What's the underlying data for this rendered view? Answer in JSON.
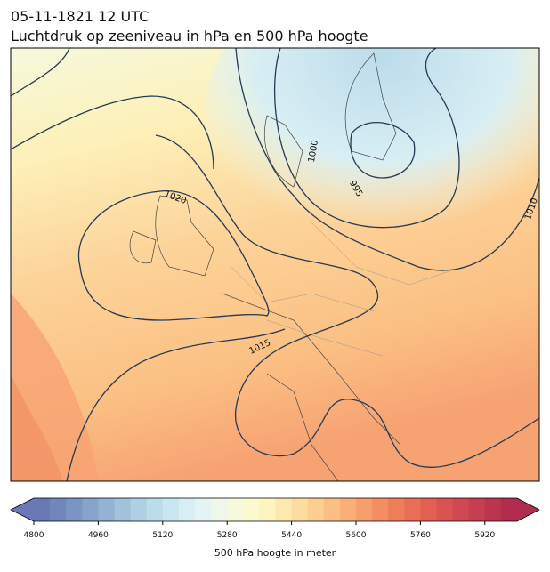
{
  "title": "05-11-1821 12 UTC",
  "subtitle": "Luchtdruk op zeeniveau in hPa en 500 hPa hoogte",
  "contour_labels": [
    1000,
    995,
    1010,
    1020,
    1015
  ],
  "colorbar": {
    "label": "500 hPa hoogte in meter",
    "lim": [
      4800,
      6000
    ],
    "ticks": [
      4800,
      4960,
      5120,
      5280,
      5440,
      5600,
      5760,
      5920
    ],
    "colors": [
      "#6a78b6",
      "#7186bd",
      "#7a94c4",
      "#85a3cb",
      "#92b3d3",
      "#a0c2db",
      "#aed0e2",
      "#bcdcea",
      "#cae6f0",
      "#d8eef4",
      "#e4f3f4",
      "#eef7ea",
      "#f6f9dc",
      "#fbf9cd",
      "#fdf4c0",
      "#fde9b0",
      "#fddca0",
      "#fcce91",
      "#fbbf83",
      "#f9af77",
      "#f69f6c",
      "#f28e62",
      "#ee7d5a",
      "#e86e55",
      "#e26052",
      "#da5351",
      "#d04851",
      "#c53e51",
      "#bb3551",
      "#b02d50"
    ]
  }
}
